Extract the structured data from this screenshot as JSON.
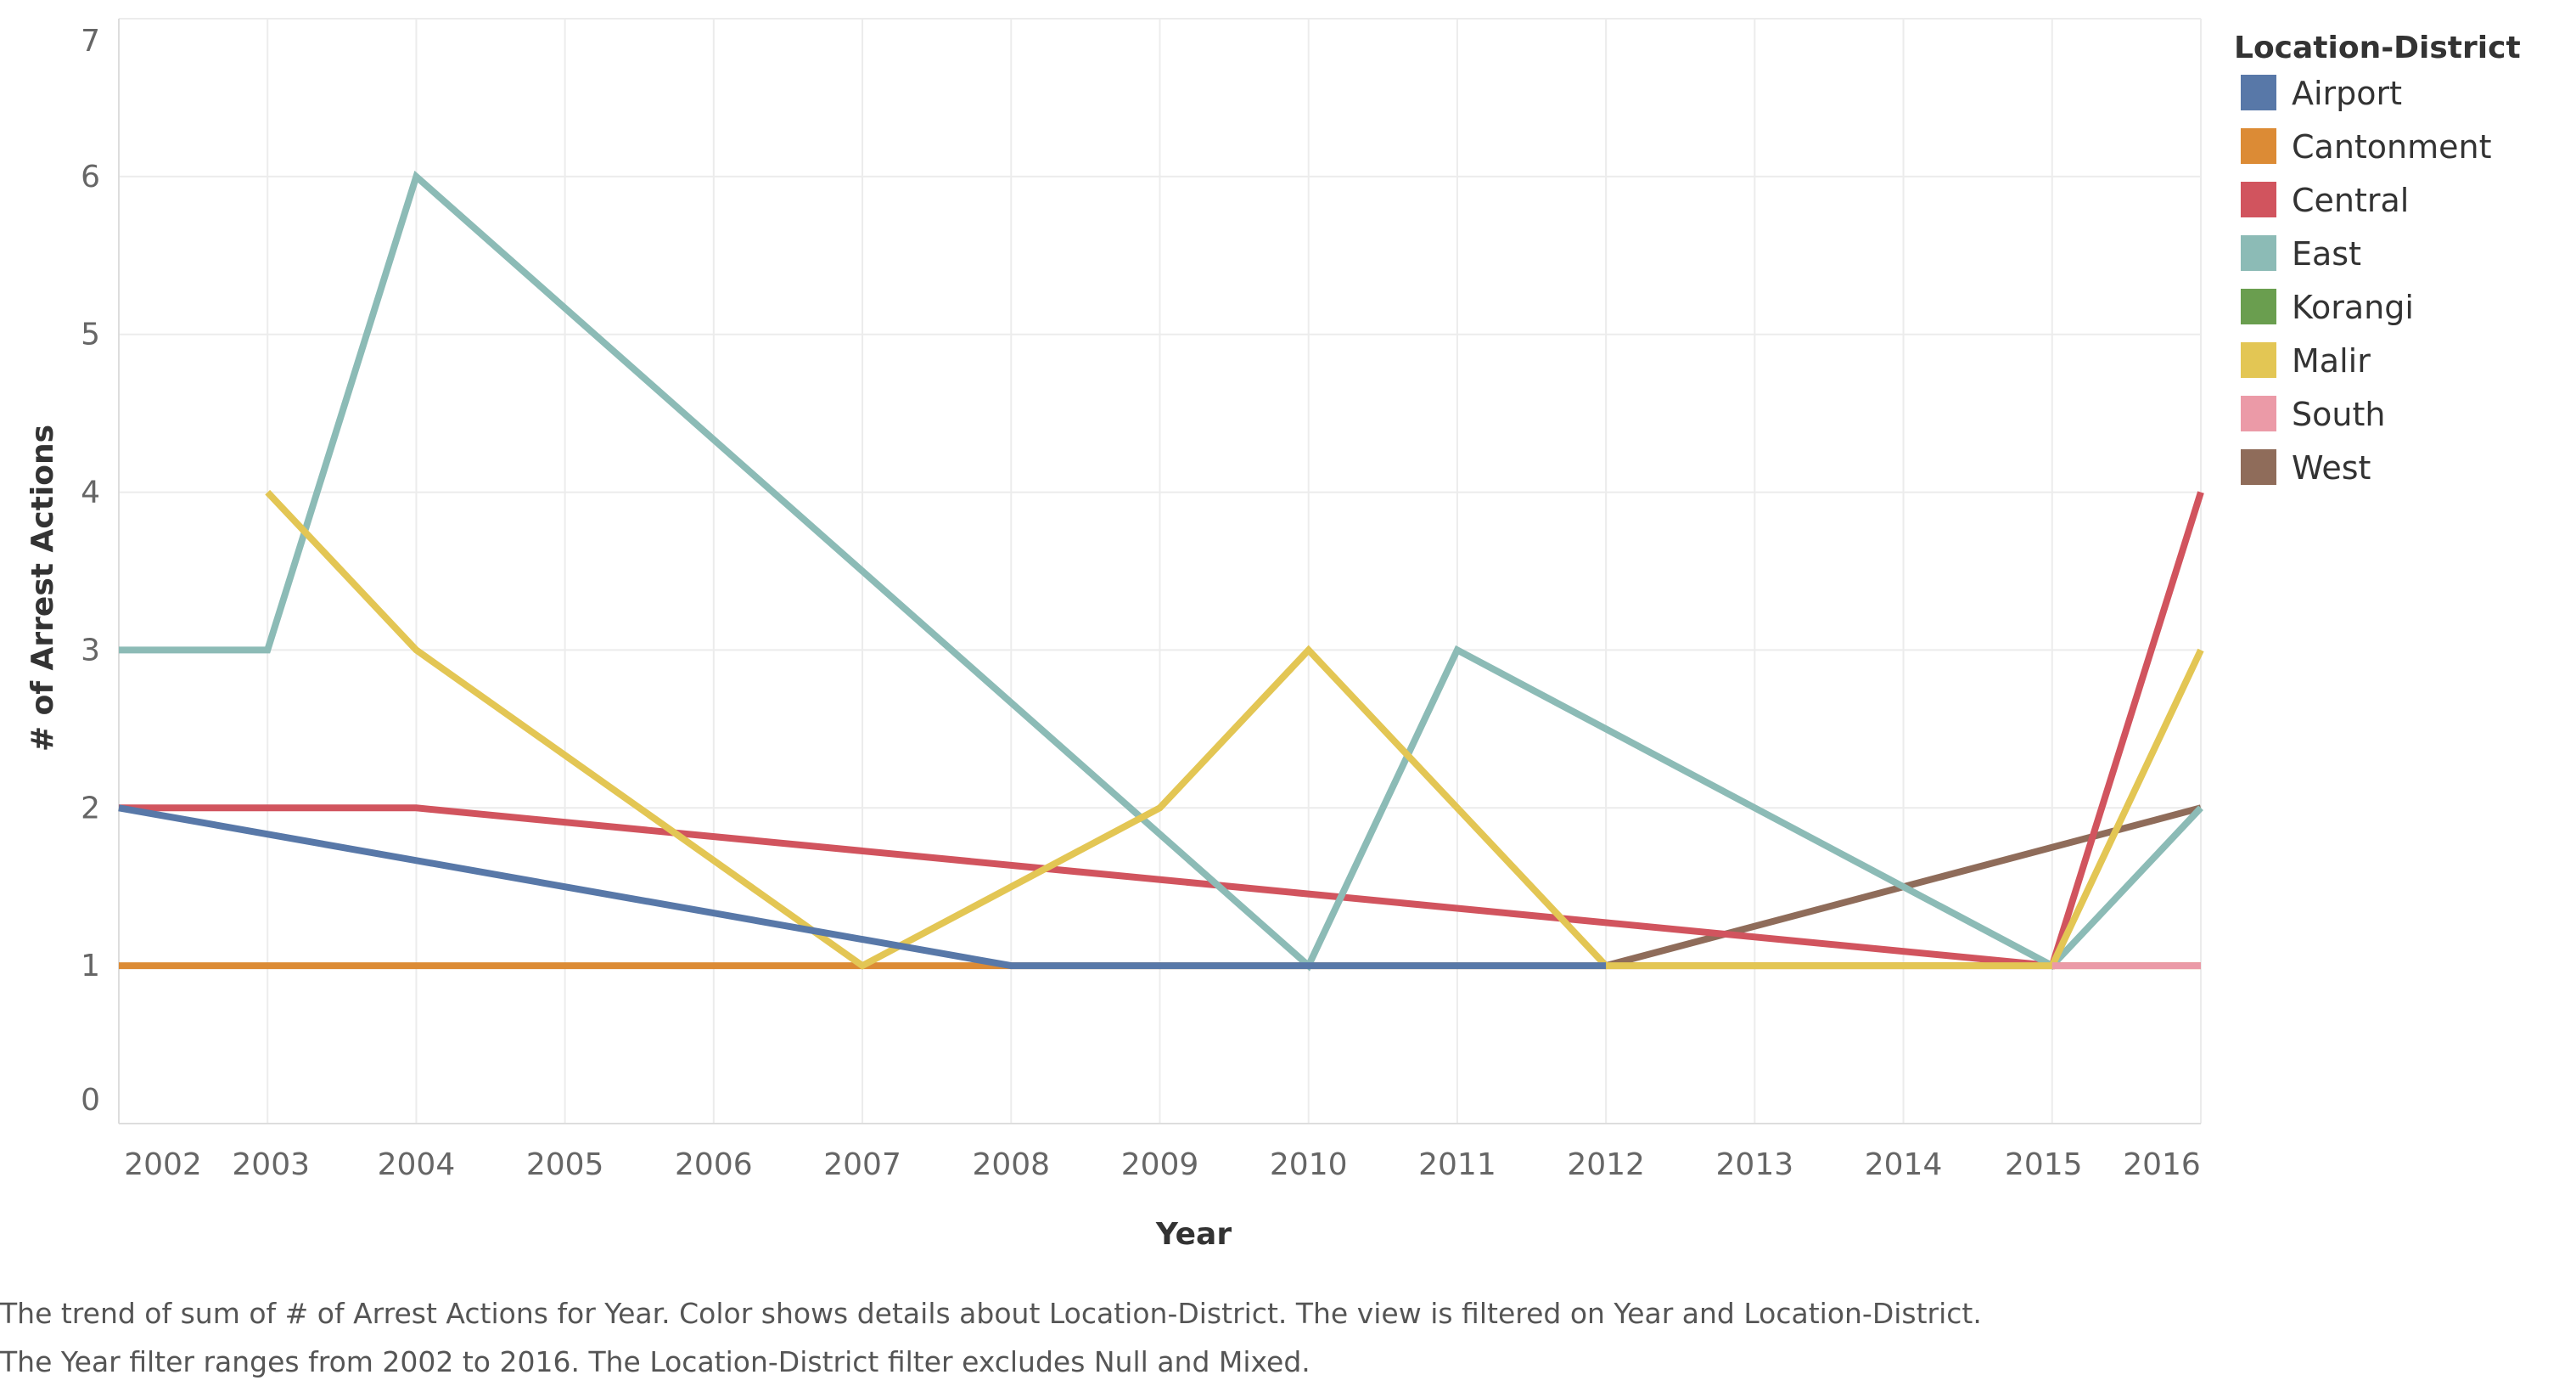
{
  "chart_data": {
    "type": "line",
    "xlabel": "Year",
    "ylabel": "# of Arrest Actions",
    "xlim": [
      2002,
      2016
    ],
    "ylim": [
      0,
      7
    ],
    "x_ticks": [
      2002,
      2003,
      2004,
      2005,
      2006,
      2007,
      2008,
      2009,
      2010,
      2011,
      2012,
      2013,
      2014,
      2015,
      2016
    ],
    "y_ticks": [
      0,
      1,
      2,
      3,
      4,
      5,
      6,
      7
    ],
    "grid": true,
    "legend": {
      "title": "Location-District",
      "placement": "right",
      "entries": [
        "Airport",
        "Cantonment",
        "Central",
        "East",
        "Korangi",
        "Malir",
        "South",
        "West"
      ]
    },
    "series": [
      {
        "name": "Cantonment",
        "color": "#dc8b35",
        "points": [
          [
            2002,
            1
          ],
          [
            2016,
            1
          ]
        ]
      },
      {
        "name": "Korangi",
        "color": "#6a9e4f",
        "points": []
      },
      {
        "name": "West",
        "color": "#8f6c5a",
        "points": [
          [
            2012,
            1
          ],
          [
            2016,
            2
          ]
        ]
      },
      {
        "name": "Central",
        "color": "#d1545e",
        "points": [
          [
            2002,
            2
          ],
          [
            2004,
            2
          ],
          [
            2015,
            1
          ],
          [
            2016,
            4
          ]
        ]
      },
      {
        "name": "East",
        "color": "#8cbbb6",
        "points": [
          [
            2002,
            3
          ],
          [
            2003,
            3
          ],
          [
            2004,
            6
          ],
          [
            2010,
            1
          ],
          [
            2011,
            3
          ],
          [
            2015,
            1
          ],
          [
            2016,
            2
          ]
        ]
      },
      {
        "name": "Malir",
        "color": "#e3c654",
        "points": [
          [
            2003,
            4
          ],
          [
            2004,
            3
          ],
          [
            2007,
            1
          ],
          [
            2009,
            2
          ],
          [
            2010,
            3
          ],
          [
            2012,
            1
          ],
          [
            2015,
            1
          ],
          [
            2016,
            3
          ]
        ]
      },
      {
        "name": "Airport",
        "color": "#5878a8",
        "points": [
          [
            2002,
            2
          ],
          [
            2008,
            1
          ],
          [
            2012,
            1
          ]
        ]
      },
      {
        "name": "South",
        "color": "#eb9aa7",
        "points": [
          [
            2015,
            1
          ],
          [
            2016,
            1
          ]
        ]
      }
    ],
    "legend_colors": {
      "Airport": "#5878a8",
      "Cantonment": "#dc8b35",
      "Central": "#d1545e",
      "East": "#8cbbb6",
      "Korangi": "#6a9e4f",
      "Malir": "#e3c654",
      "South": "#eb9aa7",
      "West": "#8f6c5a"
    }
  },
  "caption": {
    "line1": "The trend of sum of # of Arrest Actions for Year.  Color shows details about Location-District. The view is filtered on Year and Location-District.",
    "line2": "The Year filter ranges from 2002 to 2016. The Location-District filter excludes Null and Mixed."
  }
}
